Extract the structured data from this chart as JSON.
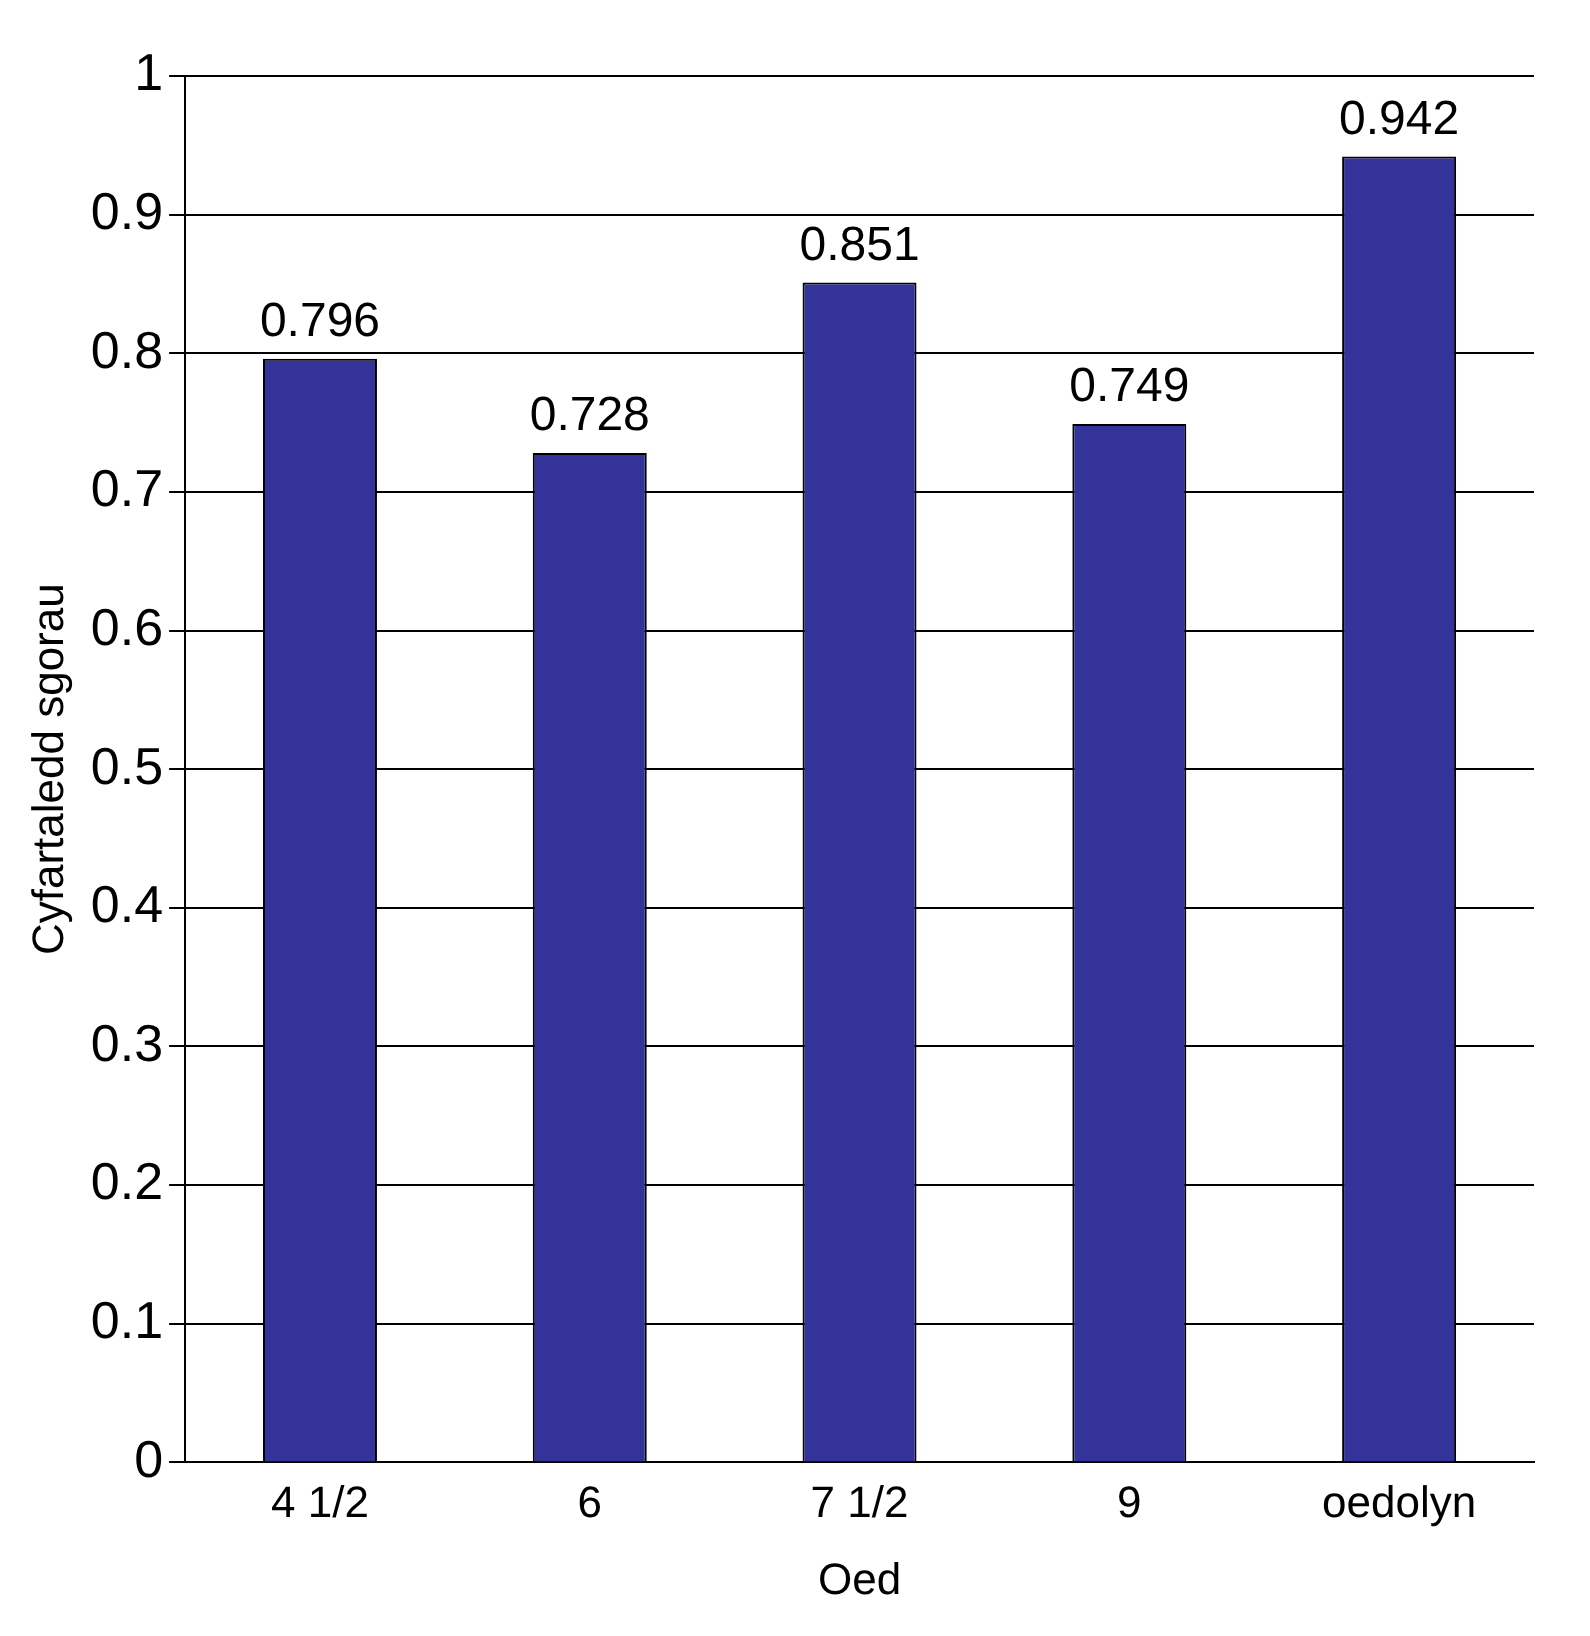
{
  "chart_data": {
    "type": "bar",
    "xlabel": "Oed",
    "ylabel": "Cyfartaledd sgorau",
    "categories": [
      "4 1/2",
      "6",
      "7 1/2",
      "9",
      "oedolyn"
    ],
    "values": [
      0.796,
      0.728,
      0.851,
      0.749,
      0.942
    ],
    "color": "#333399",
    "ylim": [
      0,
      1
    ],
    "yticks": [
      0,
      0.1,
      0.2,
      0.3,
      0.4,
      0.5,
      0.6,
      0.7,
      0.8,
      0.9,
      1
    ],
    "grid": "y",
    "legend": false,
    "data_labels": true
  }
}
